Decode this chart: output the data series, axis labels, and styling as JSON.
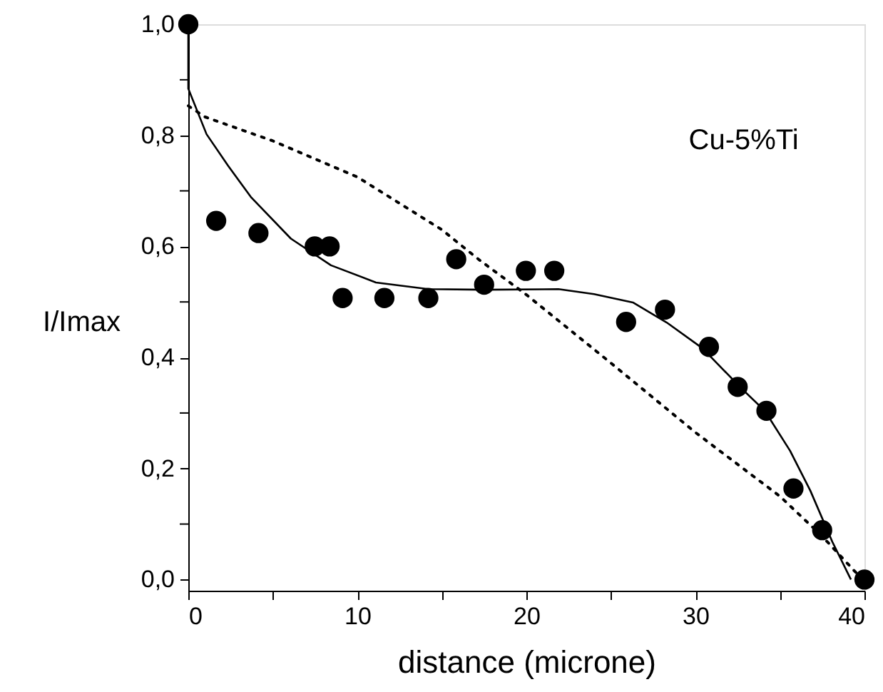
{
  "chart_data": {
    "type": "scatter",
    "xlabel": "distance (microne)",
    "ylabel": "I/Imax",
    "annotations": [
      "Cu-5%Ti"
    ],
    "xlim": [
      0,
      40
    ],
    "ylim": [
      -0.02,
      1.0
    ],
    "xticks": [
      0,
      {
        "value": 5,
        "label": null
      },
      10,
      {
        "value": 15,
        "label": null
      },
      20,
      {
        "value": 25,
        "label": null
      },
      30,
      {
        "value": 35,
        "label": null
      },
      40
    ],
    "yticks": [
      {
        "value": 0,
        "label": "0,0"
      },
      {
        "value": 0.1,
        "label": null
      },
      {
        "value": 0.2,
        "label": "0,2"
      },
      {
        "value": 0.3,
        "label": null
      },
      {
        "value": 0.4,
        "label": "0,4"
      },
      {
        "value": 0.5,
        "label": null
      },
      {
        "value": 0.6,
        "label": "0,6"
      },
      {
        "value": 0.7,
        "label": null
      },
      {
        "value": 0.8,
        "label": "0,8"
      },
      {
        "value": 0.9,
        "label": null
      },
      {
        "value": 1.0,
        "label": "1,0"
      }
    ],
    "grid": false,
    "series": [
      {
        "type": "scatter",
        "marker": "circle",
        "color": "#000000",
        "x": [
          0,
          1.65,
          4.15,
          7.48,
          8.36,
          9.13,
          11.6,
          14.2,
          15.85,
          17.5,
          19.97,
          21.65,
          25.9,
          28.2,
          30.8,
          32.5,
          34.2,
          35.8,
          37.5,
          40
        ],
        "values": [
          1.0,
          0.646,
          0.624,
          0.6,
          0.6,
          0.507,
          0.507,
          0.507,
          0.577,
          0.531,
          0.556,
          0.556,
          0.464,
          0.486,
          0.419,
          0.347,
          0.304,
          0.164,
          0.089,
          0.0
        ]
      },
      {
        "type": "line",
        "line_style": "solid",
        "color": "#000000",
        "x": [
          0,
          0,
          1.08,
          2.36,
          3.7,
          6.07,
          8.44,
          11.1,
          14.2,
          17.5,
          21.9,
          24,
          26.3,
          28.3,
          30.4,
          32.7,
          34.1,
          35.6,
          36.8,
          38.1,
          39.2
        ],
        "values": [
          1.0,
          0.884,
          0.802,
          0.745,
          0.689,
          0.614,
          0.566,
          0.535,
          0.523,
          0.522,
          0.523,
          0.514,
          0.499,
          0.463,
          0.417,
          0.345,
          0.304,
          0.232,
          0.16,
          0.068,
          0.0
        ]
      },
      {
        "type": "line",
        "line_style": "dotted",
        "color": "#000000",
        "x": [
          0,
          1,
          5,
          10,
          15,
          17.2,
          20,
          25,
          30,
          35,
          37.5,
          39.7
        ],
        "values": [
          0.853,
          0.833,
          0.79,
          0.725,
          0.63,
          0.576,
          0.513,
          0.39,
          0.265,
          0.15,
          0.078,
          0.006
        ]
      }
    ]
  }
}
